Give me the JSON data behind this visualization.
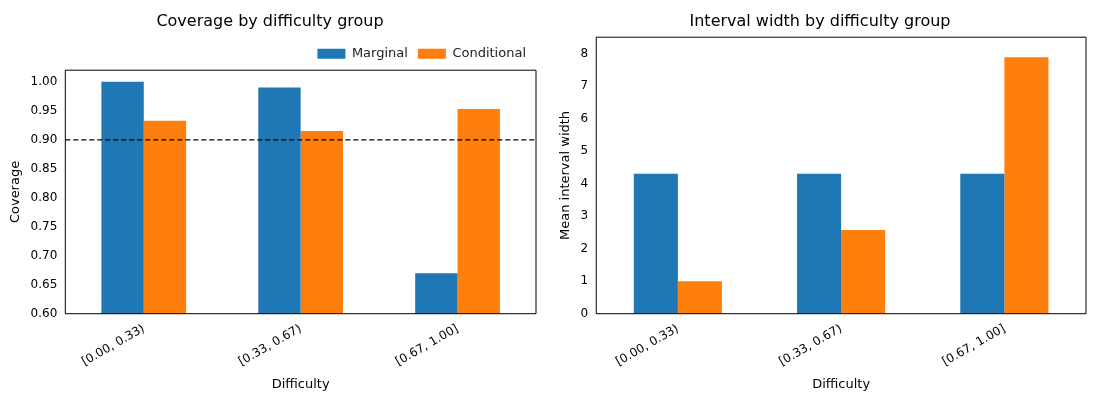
{
  "chart_data": [
    {
      "type": "bar",
      "title": "Coverage by difficulty group",
      "xlabel": "Difficulty",
      "ylabel": "Coverage",
      "categories": [
        "[0.00, 0.33)",
        "[0.33, 0.67)",
        "[0.67, 1.00]"
      ],
      "series": [
        {
          "name": "Marginal",
          "color": "#1f77b4",
          "values": [
            1.0,
            0.99,
            0.67
          ]
        },
        {
          "name": "Conditional",
          "color": "#ff7f0e",
          "values": [
            0.933,
            0.915,
            0.953
          ]
        }
      ],
      "ylim": [
        0.6,
        1.02
      ],
      "yticks": [
        {
          "value": 0.6,
          "label": "0.60"
        },
        {
          "value": 0.65,
          "label": "0.65"
        },
        {
          "value": 0.7,
          "label": "0.70"
        },
        {
          "value": 0.75,
          "label": "0.75"
        },
        {
          "value": 0.8,
          "label": "0.80"
        },
        {
          "value": 0.85,
          "label": "0.85"
        },
        {
          "value": 0.9,
          "label": "0.90"
        },
        {
          "value": 0.95,
          "label": "0.95"
        },
        {
          "value": 1.0,
          "label": "1.00"
        }
      ],
      "ref_lines": [
        {
          "axis": "y",
          "value": 0.9,
          "color": "#000000",
          "line_style": "dashed"
        }
      ],
      "legend": "top right",
      "grid": false
    },
    {
      "type": "bar",
      "title": "Interval width by difficulty group",
      "xlabel": "Difficulty",
      "ylabel": "Mean interval width",
      "categories": [
        "[0.00, 0.33)",
        "[0.33, 0.67)",
        "[0.67, 1.00]"
      ],
      "series": [
        {
          "color": "#1f77b4",
          "values": [
            4.3,
            4.3,
            4.3
          ]
        },
        {
          "color": "#ff7f0e",
          "values": [
            1.0,
            2.57,
            7.88
          ]
        }
      ],
      "ylim": [
        0,
        8.5
      ],
      "yticks": [
        0,
        1,
        2,
        3,
        4,
        5,
        6,
        7,
        8
      ],
      "legend": false,
      "grid": false
    }
  ]
}
